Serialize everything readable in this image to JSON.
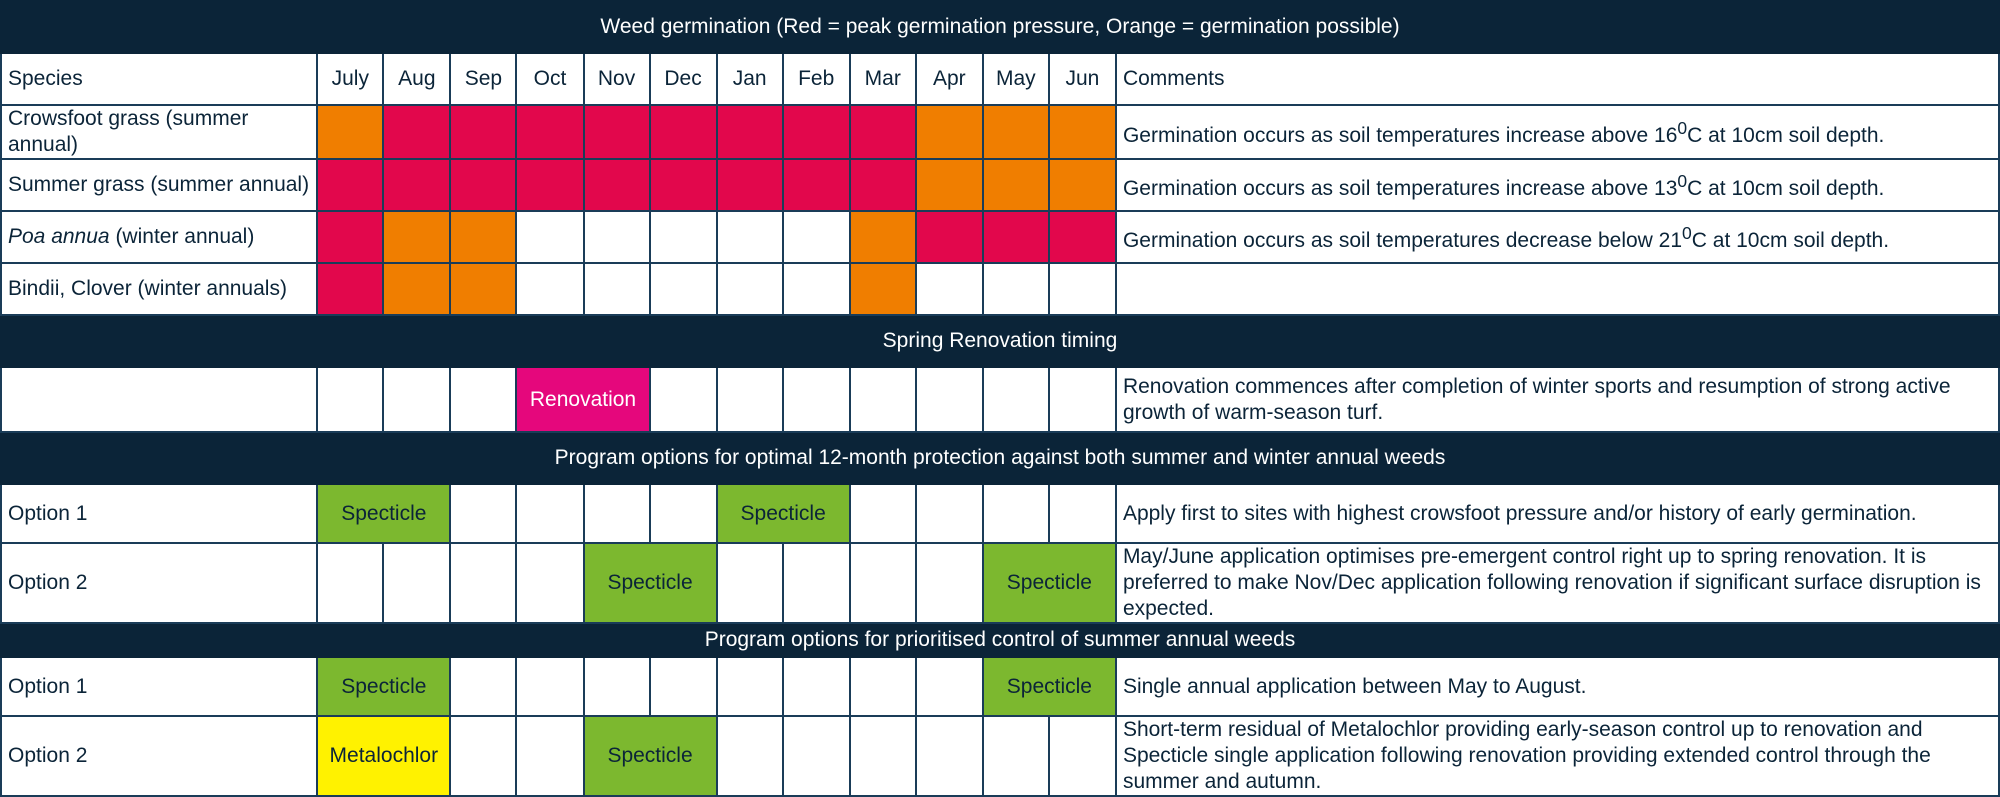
{
  "title": "Weed germination (Red = peak germination pressure, Orange = germination possible)",
  "legend_colors": {
    "peak": "#e2074c",
    "possible": "#f07e00",
    "renovation": "#e5077c",
    "specticle": "#7cb82f",
    "metalochlor": "#fff200",
    "header_bg": "#0b2438"
  },
  "header": {
    "species": "Species",
    "months": [
      "July",
      "Aug",
      "Sep",
      "Oct",
      "Nov",
      "Dec",
      "Jan",
      "Feb",
      "Mar",
      "Apr",
      "May",
      "Jun"
    ],
    "comments": "Comments"
  },
  "species": [
    {
      "name_italic": "",
      "name": "Crowsfoot grass (summer annual)",
      "months": [
        "possible",
        "peak",
        "peak",
        "peak",
        "peak",
        "peak",
        "peak",
        "peak",
        "peak",
        "possible",
        "possible",
        "possible"
      ],
      "comment_a": "Germination occurs as soil temperatures increase above 16",
      "comment_sup": "0",
      "comment_b": "C at 10cm soil depth."
    },
    {
      "name_italic": "",
      "name": "Summer grass (summer annual)",
      "months": [
        "peak",
        "peak",
        "peak",
        "peak",
        "peak",
        "peak",
        "peak",
        "peak",
        "peak",
        "possible",
        "possible",
        "possible"
      ],
      "comment_a": "Germination occurs as soil temperatures increase above 13",
      "comment_sup": "0",
      "comment_b": "C at 10cm soil depth."
    },
    {
      "name_italic": "Poa annua",
      "name": " (winter annual)",
      "months": [
        "peak",
        "possible",
        "possible",
        "",
        "",
        "",
        "",
        "",
        "possible",
        "peak",
        "peak",
        "peak"
      ],
      "comment_a": "Germination occurs as soil temperatures decrease below 21",
      "comment_sup": "0",
      "comment_b": "C at 10cm soil depth."
    },
    {
      "name_italic": "",
      "name": "Bindii, Clover (winter annuals)",
      "months": [
        "peak",
        "possible",
        "possible",
        "",
        "",
        "",
        "",
        "",
        "possible",
        "",
        "",
        ""
      ],
      "comment_a": "",
      "comment_sup": "",
      "comment_b": ""
    }
  ],
  "renovation": {
    "section_title": "Spring Renovation timing",
    "label": "Renovation",
    "comment": "Renovation commences after completion of winter sports and resumption of strong active growth of warm-season turf."
  },
  "protection": {
    "section_title": "Program options for optimal 12-month protection against both summer and winter annual weeds",
    "option1": {
      "label": "Option 1",
      "product_a": "Specticle",
      "product_b": "Specticle",
      "comment": "Apply first to sites with highest crowsfoot pressure and/or history of early germination."
    },
    "option2": {
      "label": "Option 2",
      "product_a": "Specticle",
      "product_b": "Specticle",
      "comment": "May/June application optimises pre-emergent control right up to spring renovation. It is preferred to make Nov/Dec application following renovation if significant surface disruption is expected."
    }
  },
  "summer": {
    "section_title": "Program options for prioritised control of summer annual weeds",
    "option1": {
      "label": "Option 1",
      "product_a": "Specticle",
      "product_b": "Specticle",
      "comment": "Single annual application between May to August."
    },
    "option2": {
      "label": "Option 2",
      "product_a": "Metalochlor",
      "product_b": "Specticle",
      "comment": "Short-term residual of Metalochlor providing early-season control up to renovation and Specticle single application following renovation providing extended control through the summer and autumn."
    }
  }
}
